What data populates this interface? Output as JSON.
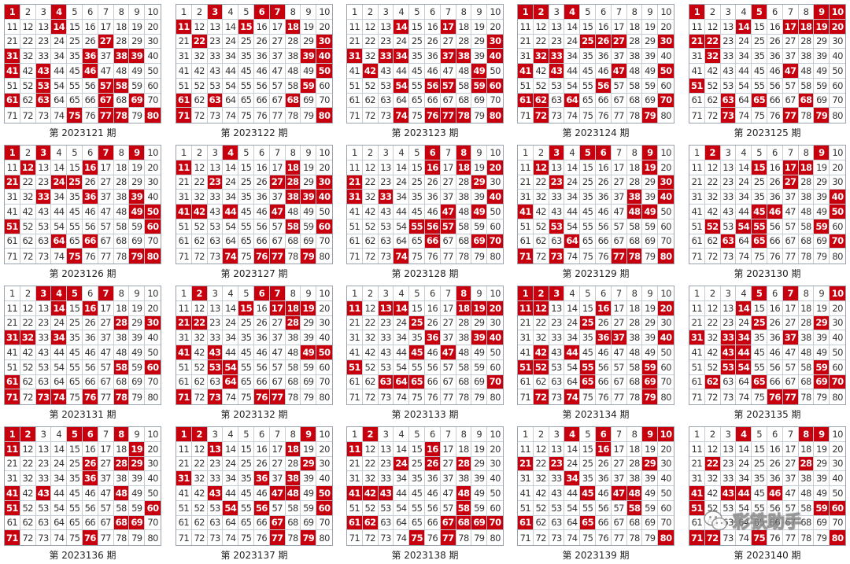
{
  "colors": {
    "hit_fill": "#c8000d",
    "hit_text": "#ffffff",
    "cell_text": "#333333",
    "grid_line": "#c5ccd3"
  },
  "panels": [
    {
      "caption": "第 2023121 期",
      "hits": [
        1,
        4,
        14,
        27,
        31,
        36,
        38,
        39,
        41,
        43,
        46,
        53,
        57,
        58,
        61,
        63,
        67,
        69,
        75,
        77,
        78,
        80
      ]
    },
    {
      "caption": "第 2023122 期",
      "hits": [
        3,
        6,
        7,
        11,
        15,
        18,
        22,
        30,
        39,
        40,
        50,
        59,
        61,
        63,
        68,
        71,
        80
      ]
    },
    {
      "caption": "第 2023123 期",
      "hits": [
        14,
        17,
        30,
        31,
        33,
        34,
        37,
        38,
        40,
        42,
        49,
        54,
        56,
        57,
        59,
        60,
        74,
        76,
        77,
        78,
        80
      ]
    },
    {
      "caption": "第 2023124 期",
      "hits": [
        1,
        2,
        4,
        25,
        26,
        27,
        30,
        32,
        33,
        41,
        43,
        47,
        50,
        56,
        61,
        62,
        64,
        70,
        72,
        79
      ]
    },
    {
      "caption": "第 2023125 期",
      "hits": [
        1,
        5,
        9,
        10,
        14,
        17,
        18,
        19,
        20,
        21,
        22,
        32,
        47,
        51,
        63,
        65,
        68,
        73,
        77,
        79
      ]
    },
    {
      "caption": "第 2023126 期",
      "hits": [
        1,
        3,
        7,
        9,
        12,
        16,
        21,
        24,
        25,
        33,
        36,
        39,
        49,
        50,
        51,
        60,
        64,
        66,
        75,
        79,
        80
      ]
    },
    {
      "caption": "第 2023127 期",
      "hits": [
        4,
        11,
        18,
        23,
        27,
        28,
        30,
        38,
        39,
        40,
        41,
        42,
        44,
        47,
        58,
        60,
        74,
        76,
        77,
        79
      ]
    },
    {
      "caption": "第 2023128 期",
      "hits": [
        6,
        8,
        16,
        18,
        20,
        21,
        29,
        31,
        33,
        40,
        47,
        49,
        55,
        56,
        57,
        66,
        69,
        70,
        74
      ]
    },
    {
      "caption": "第 2023129 期",
      "hits": [
        3,
        5,
        6,
        9,
        12,
        19,
        23,
        30,
        38,
        40,
        41,
        48,
        49,
        53,
        64,
        71,
        73,
        77,
        78,
        80
      ]
    },
    {
      "caption": "第 2023130 期",
      "hits": [
        2,
        9,
        15,
        17,
        18,
        27,
        40,
        45,
        46,
        50,
        52,
        54,
        55,
        59,
        63,
        65,
        70
      ]
    },
    {
      "caption": "第 2023131 期",
      "hits": [
        3,
        4,
        5,
        7,
        14,
        16,
        28,
        30,
        31,
        32,
        34,
        58,
        60,
        61,
        71,
        73,
        74,
        76,
        78
      ]
    },
    {
      "caption": "第 2023132 期",
      "hits": [
        2,
        6,
        7,
        15,
        17,
        18,
        19,
        21,
        22,
        28,
        41,
        43,
        49,
        50,
        53,
        54,
        64,
        71,
        73,
        76,
        77
      ]
    },
    {
      "caption": "第 2023133 期",
      "hits": [
        8,
        11,
        13,
        14,
        18,
        19,
        20,
        25,
        36,
        39,
        40,
        45,
        47,
        51,
        63,
        64,
        65,
        70
      ]
    },
    {
      "caption": "第 2023134 期",
      "hits": [
        1,
        2,
        3,
        11,
        12,
        16,
        20,
        25,
        36,
        37,
        40,
        42,
        44,
        51,
        52,
        55,
        59,
        65,
        69,
        72,
        74,
        79
      ]
    },
    {
      "caption": "第 2023135 期",
      "hits": [
        5,
        7,
        10,
        14,
        25,
        29,
        31,
        33,
        34,
        37,
        43,
        44,
        53,
        54,
        59,
        62,
        65,
        69,
        70,
        76,
        77
      ]
    },
    {
      "caption": "第 2023136 期",
      "hits": [
        1,
        2,
        5,
        6,
        8,
        11,
        19,
        26,
        28,
        29,
        36,
        41,
        43,
        48,
        51,
        60,
        68,
        69,
        71,
        76
      ]
    },
    {
      "caption": "第 2023137 期",
      "hits": [
        1,
        2,
        9,
        13,
        18,
        29,
        31,
        36,
        38,
        43,
        47,
        48,
        50,
        54,
        56,
        60,
        67,
        77,
        79
      ]
    },
    {
      "caption": "第 2023138 期",
      "hits": [
        2,
        11,
        16,
        24,
        26,
        28,
        41,
        42,
        43,
        48,
        58,
        61,
        62,
        67,
        68,
        69,
        70,
        75,
        77
      ]
    },
    {
      "caption": "第 2023139 期",
      "hits": [
        4,
        6,
        9,
        10,
        16,
        21,
        23,
        29,
        34,
        45,
        47,
        48,
        58,
        61,
        65,
        80
      ]
    },
    {
      "caption": "第 2023140 期",
      "hits": [
        4,
        8,
        9,
        22,
        28,
        41,
        43,
        44,
        46,
        51,
        59,
        60,
        71,
        72,
        75,
        80
      ]
    }
  ],
  "watermark": {
    "icon": "wechat-icon",
    "text": "彩铁助手"
  }
}
